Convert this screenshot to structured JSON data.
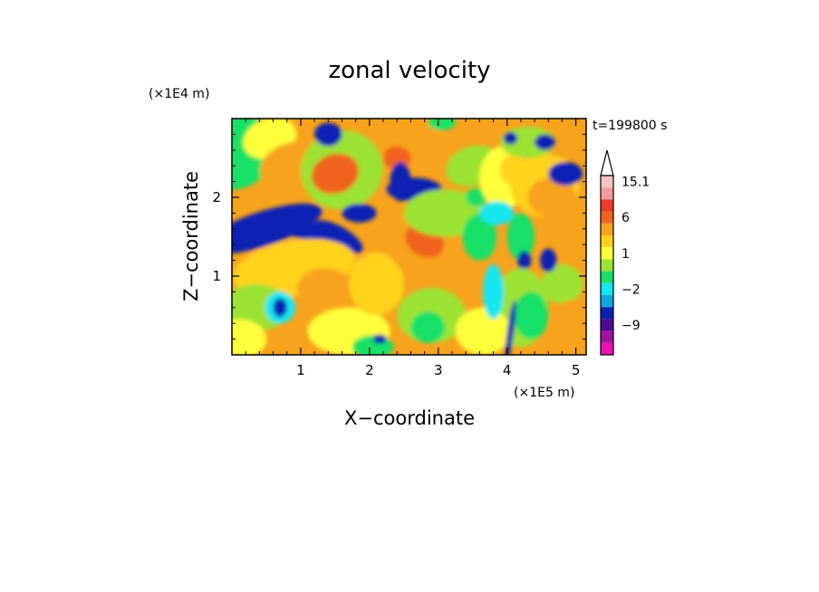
{
  "chart_data": {
    "type": "heatmap",
    "title": "zonal velocity",
    "xlabel": "X−coordinate",
    "ylabel": "Z−coordinate",
    "x_scale_label": "(×1E5 m)",
    "y_scale_label": "(×1E4 m)",
    "time_label": "t=199800 s",
    "xlim": [
      0,
      5.15
    ],
    "ylim": [
      0,
      3.0
    ],
    "x_ticks": [
      {
        "value": 1,
        "label": "1"
      },
      {
        "value": 2,
        "label": "2"
      },
      {
        "value": 3,
        "label": "3"
      },
      {
        "value": 4,
        "label": "4"
      },
      {
        "value": 5,
        "label": "5"
      }
    ],
    "y_ticks": [
      {
        "value": 1,
        "label": "1"
      },
      {
        "value": 2,
        "label": "2"
      }
    ],
    "colorbar": {
      "levels": [
        {
          "value": 15.1,
          "color": "#f6c3c3",
          "label": "15.1"
        },
        {
          "value": 12,
          "color": "#f59a9a",
          "label": ""
        },
        {
          "value": 9,
          "color": "#ee3b2e",
          "label": ""
        },
        {
          "value": 6,
          "color": "#f0641e",
          "label": "6"
        },
        {
          "value": 3,
          "color": "#f7a21c",
          "label": ""
        },
        {
          "value": 2,
          "color": "#ffd21a",
          "label": ""
        },
        {
          "value": 1,
          "color": "#ffff3a",
          "label": "1"
        },
        {
          "value": 0,
          "color": "#9ce233",
          "label": ""
        },
        {
          "value": -1,
          "color": "#17e065",
          "label": ""
        },
        {
          "value": -2,
          "color": "#12e6f0",
          "label": "-2"
        },
        {
          "value": -3,
          "color": "#15a8e0",
          "label": ""
        },
        {
          "value": -6,
          "color": "#0b21b4",
          "label": ""
        },
        {
          "value": -9,
          "color": "#4d0a98",
          "label": "-9"
        },
        {
          "value": -12,
          "color": "#a3139c",
          "label": ""
        },
        {
          "value": -15,
          "color": "#ee10b2",
          "label": ""
        }
      ],
      "extend_max": true
    }
  }
}
